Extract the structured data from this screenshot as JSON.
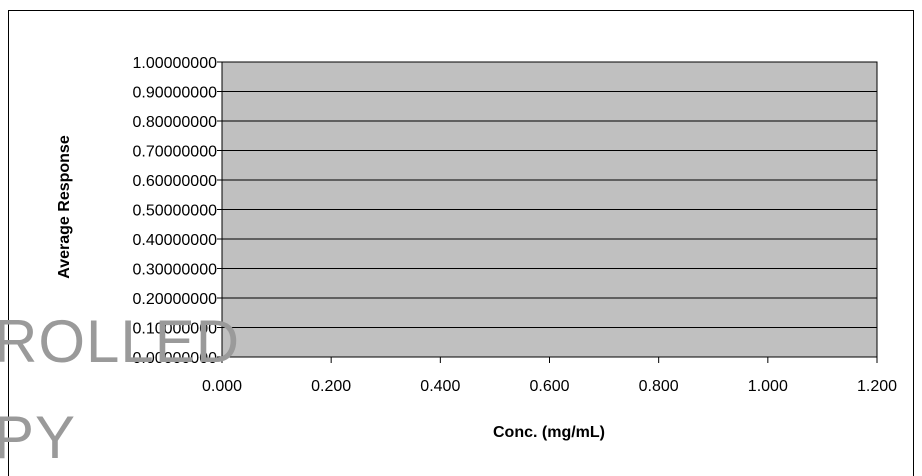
{
  "watermark": {
    "line1": "ROLLED",
    "line2": "PY"
  },
  "colors": {
    "plot_background": "#c0c0c0",
    "gridline": "#000000",
    "axis": "#000000",
    "text": "#000000",
    "watermark": "#9a9a9a"
  },
  "chart_data": {
    "type": "scatter",
    "title": "",
    "xlabel": "Conc. (mg/mL)",
    "ylabel": "Average Response",
    "xlim": [
      0,
      1.2
    ],
    "ylim": [
      0,
      1
    ],
    "x_ticks": [
      0,
      0.2,
      0.4,
      0.6,
      0.8,
      1.0,
      1.2
    ],
    "x_tick_labels": [
      "0.000",
      "0.200",
      "0.400",
      "0.600",
      "0.800",
      "1.000",
      "1.200"
    ],
    "y_ticks": [
      0,
      0.1,
      0.2,
      0.3,
      0.4,
      0.5,
      0.6,
      0.7,
      0.8,
      0.9,
      1.0
    ],
    "y_tick_labels": [
      "0.00000000",
      "0.10000000",
      "0.20000000",
      "0.30000000",
      "0.40000000",
      "0.50000000",
      "0.60000000",
      "0.70000000",
      "0.80000000",
      "0.90000000",
      "1.00000000"
    ],
    "grid": "horizontal",
    "legend": "none",
    "series": []
  }
}
